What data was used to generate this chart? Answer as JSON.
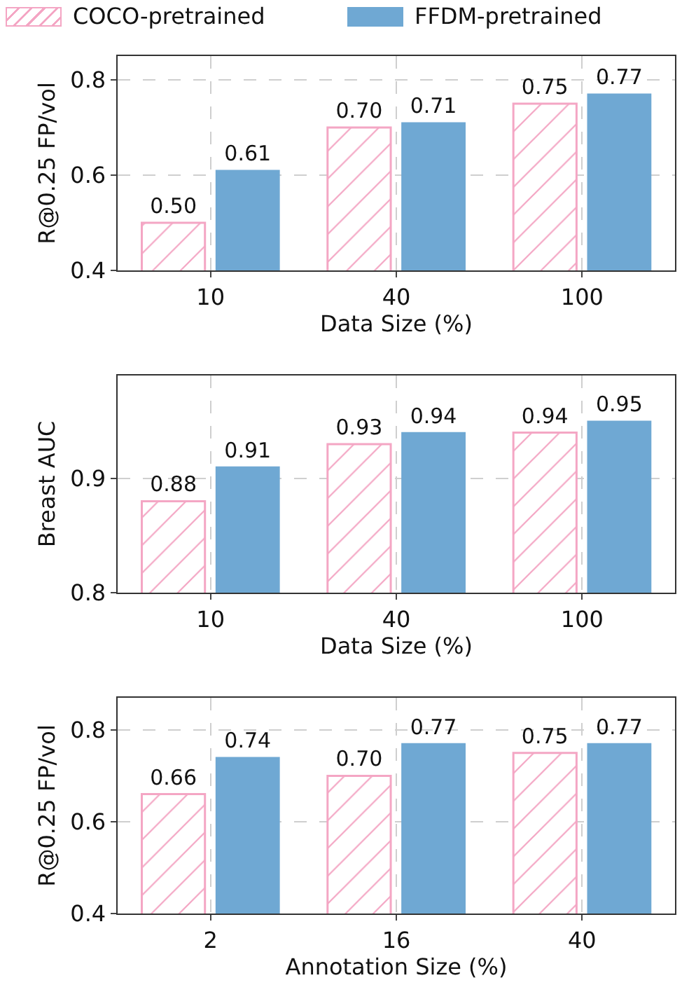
{
  "chart_data": [
    {
      "type": "bar",
      "categories": [
        "10",
        "40",
        "100"
      ],
      "xlabel": "Data Size (%)",
      "ylabel": "R@0.25 FP/vol",
      "ylim": [
        0.4,
        0.85
      ],
      "yticks": [
        0.4,
        0.6,
        0.8
      ],
      "grid": true,
      "legend": "top",
      "series": [
        {
          "name": "COCO-pretrained",
          "color": "#f4a6c4",
          "values": [
            0.5,
            0.7,
            0.75
          ],
          "value_labels": [
            "0.50",
            "0.70",
            "0.75"
          ]
        },
        {
          "name": "FFDM-pretrained",
          "color": "#6fa8d3",
          "values": [
            0.61,
            0.71,
            0.77
          ],
          "value_labels": [
            "0.61",
            "0.71",
            "0.77"
          ]
        }
      ]
    },
    {
      "type": "bar",
      "categories": [
        "10",
        "40",
        "100"
      ],
      "xlabel": "Data Size (%)",
      "ylabel": "Breast AUC",
      "ylim": [
        0.8,
        0.99
      ],
      "yticks": [
        0.8,
        0.9
      ],
      "grid": true,
      "series": [
        {
          "color": "#f4a6c4",
          "values": [
            0.88,
            0.93,
            0.94
          ],
          "value_labels": [
            "0.88",
            "0.93",
            "0.94"
          ]
        },
        {
          "color": "#6fa8d3",
          "values": [
            0.91,
            0.94,
            0.95
          ],
          "value_labels": [
            "0.91",
            "0.94",
            "0.95"
          ]
        }
      ]
    },
    {
      "type": "bar",
      "categories": [
        "2",
        "16",
        "40"
      ],
      "xlabel": "Annotation Size (%)",
      "ylabel": "R@0.25 FP/vol",
      "ylim": [
        0.4,
        0.87
      ],
      "yticks": [
        0.4,
        0.6,
        0.8
      ],
      "grid": true,
      "series": [
        {
          "color": "#f4a6c4",
          "values": [
            0.66,
            0.7,
            0.75
          ],
          "value_labels": [
            "0.66",
            "0.70",
            "0.75"
          ]
        },
        {
          "color": "#6fa8d3",
          "values": [
            0.74,
            0.77,
            0.77
          ],
          "value_labels": [
            "0.74",
            "0.77",
            "0.77"
          ]
        }
      ]
    }
  ]
}
